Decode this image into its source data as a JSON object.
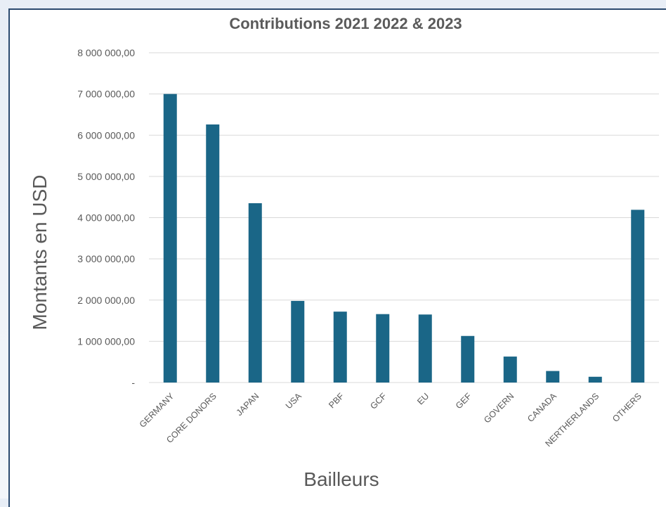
{
  "chart_data": {
    "type": "bar",
    "title": "Contributions 2021 2022 & 2023",
    "xlabel": "Bailleurs",
    "ylabel": "Montants en USD",
    "categories": [
      "GERMANY",
      "CORE DONORS",
      "JAPAN",
      "USA",
      "PBF",
      "GCF",
      "EU",
      "GEF",
      "GOVERN",
      "CANADA",
      "NERTHERLANDS",
      "OTHERS"
    ],
    "values": [
      7000000,
      6260000,
      4350000,
      1980000,
      1720000,
      1660000,
      1650000,
      1130000,
      630000,
      280000,
      140000,
      4190000
    ],
    "ylim": [
      0,
      8000000
    ],
    "yticks": [
      0,
      1000000,
      2000000,
      3000000,
      4000000,
      5000000,
      6000000,
      7000000,
      8000000
    ],
    "ytick_labels": [
      "-",
      "1 000 000,00",
      "2 000 000,00",
      "3 000 000,00",
      "4 000 000,00",
      "5 000 000,00",
      "6 000 000,00",
      "7 000 000,00",
      "8 000 000,00"
    ],
    "bar_color": "#1a6687",
    "grid": true,
    "legend": "none"
  }
}
